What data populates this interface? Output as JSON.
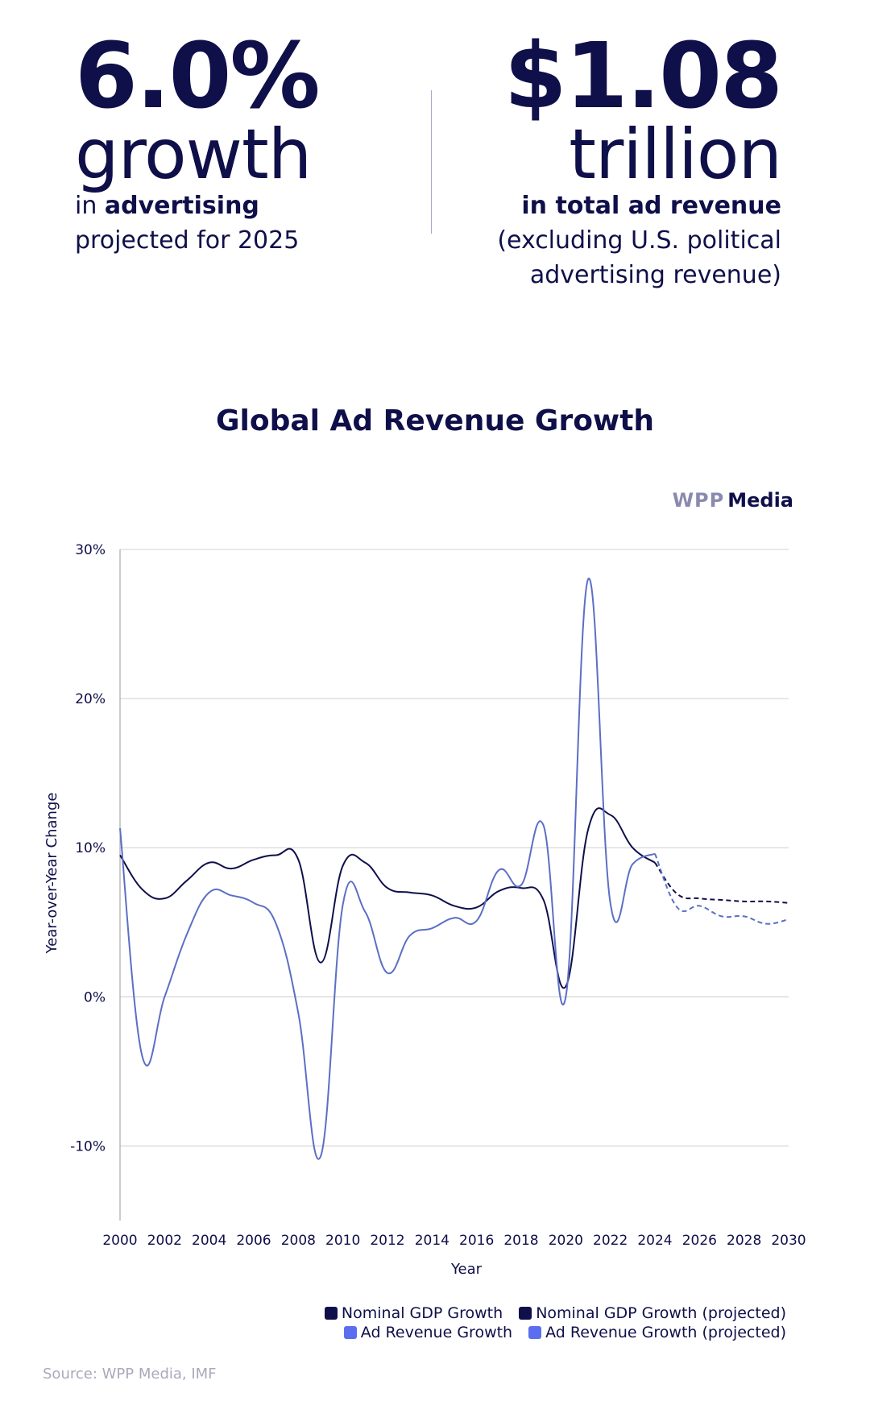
{
  "stats": {
    "left": {
      "number": "6.0%",
      "word": "growth",
      "line1_pre": "in ",
      "line1_bold": "advertising",
      "line2": "projected for 2025"
    },
    "right": {
      "number": "$1.08",
      "word": "trillion",
      "line1_bold": "in total ad revenue",
      "line2": "(excluding U.S. political",
      "line3": "advertising revenue)"
    }
  },
  "logo": {
    "part1": "WPP",
    "part2": "Media"
  },
  "source": "Source: WPP Media, IMF",
  "colors": {
    "navy": "#0f0f4a",
    "blue": "#5b6fc4",
    "legend_blue": "#5b6ef0",
    "grid": "#d9d9d9"
  },
  "chart_data": {
    "type": "line",
    "title": "Global Ad Revenue Growth",
    "xlabel": "Year",
    "ylabel": "Year-over-Year Change",
    "xlim": [
      2000,
      2030
    ],
    "ylim": [
      -15,
      30
    ],
    "x_ticks": [
      "2000",
      "2002",
      "2004",
      "2006",
      "2008",
      "2010",
      "2012",
      "2014",
      "2016",
      "2018",
      "2020",
      "2022",
      "2024",
      "2026",
      "2028",
      "2030"
    ],
    "y_ticks": [
      {
        "value": 30,
        "label": "30%"
      },
      {
        "value": 20,
        "label": "20%"
      },
      {
        "value": 10,
        "label": "10%"
      },
      {
        "value": 0,
        "label": "0%"
      },
      {
        "value": -10,
        "label": "-10%"
      }
    ],
    "grid": true,
    "legend_position": "bottom-right",
    "series": [
      {
        "name": "Nominal GDP Growth",
        "color": "#0f0f4a",
        "style": "solid",
        "x": [
          2000,
          2001,
          2002,
          2003,
          2004,
          2005,
          2006,
          2007,
          2008,
          2009,
          2010,
          2011,
          2012,
          2013,
          2014,
          2015,
          2016,
          2017,
          2018,
          2019,
          2020,
          2021,
          2022,
          2023,
          2024
        ],
        "y": [
          9.5,
          7.2,
          6.6,
          7.8,
          9.0,
          8.6,
          9.2,
          9.5,
          9.2,
          2.3,
          8.8,
          9.0,
          7.3,
          7.0,
          6.8,
          6.1,
          6.0,
          7.1,
          7.3,
          6.5,
          0.7,
          11.2,
          12.2,
          10.0,
          9.0
        ]
      },
      {
        "name": "Nominal GDP Growth (projected)",
        "color": "#0f0f4a",
        "style": "dashed",
        "x": [
          2024,
          2025,
          2026,
          2027,
          2028,
          2029,
          2030
        ],
        "y": [
          9.0,
          6.9,
          6.6,
          6.5,
          6.4,
          6.4,
          6.3
        ]
      },
      {
        "name": "Ad Revenue Growth",
        "color": "#5b6fc4",
        "style": "solid",
        "x": [
          2000,
          2001,
          2002,
          2003,
          2004,
          2005,
          2006,
          2007,
          2008,
          2009,
          2010,
          2011,
          2012,
          2013,
          2014,
          2015,
          2016,
          2017,
          2018,
          2019,
          2020,
          2021,
          2022,
          2023,
          2024
        ],
        "y": [
          11.3,
          -4.0,
          0.0,
          4.2,
          7.0,
          6.8,
          6.3,
          4.9,
          -1.1,
          -10.7,
          6.2,
          5.7,
          1.6,
          4.1,
          4.6,
          5.3,
          5.1,
          8.5,
          7.5,
          11.5,
          0.0,
          28.0,
          6.3,
          8.9,
          9.6
        ]
      },
      {
        "name": "Ad Revenue Growth (projected)",
        "color": "#5b6fc4",
        "style": "dashed",
        "x": [
          2024,
          2025,
          2026,
          2027,
          2028,
          2029,
          2030
        ],
        "y": [
          9.6,
          6.0,
          6.1,
          5.4,
          5.4,
          4.9,
          5.2
        ]
      }
    ]
  }
}
